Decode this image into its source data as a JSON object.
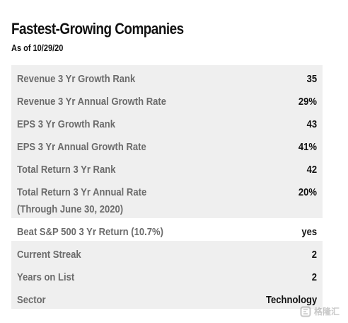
{
  "header": {
    "title": "Fastest-Growing Companies",
    "subtitle": "As of 10/29/20"
  },
  "rows": [
    {
      "label": "Revenue 3 Yr Growth Rank",
      "value": "35"
    },
    {
      "label": "Revenue 3 Yr Annual Growth Rate",
      "value": "29%"
    },
    {
      "label": "EPS 3 Yr Growth Rank",
      "value": "43"
    },
    {
      "label": "EPS 3 Yr Annual Growth Rate",
      "value": "41%"
    },
    {
      "label": "Total Return 3 Yr Rank",
      "value": "42"
    },
    {
      "label": "Total Return 3 Yr Annual Rate",
      "label2": "(Through June 30, 2020)",
      "value": "20%"
    },
    {
      "label": "Beat S&P 500 3 Yr Return (10.7%)",
      "value": "yes"
    },
    {
      "label": "Current Streak",
      "value": "2"
    },
    {
      "label": "Years on List",
      "value": "2"
    },
    {
      "label": "Sector",
      "value": "Technology"
    }
  ],
  "watermark": {
    "text": "格隆汇",
    "icon": "gelonghui-logo-icon"
  },
  "colors": {
    "row_shade": "#efefef",
    "label": "#6b6b6b",
    "value": "#111111"
  }
}
